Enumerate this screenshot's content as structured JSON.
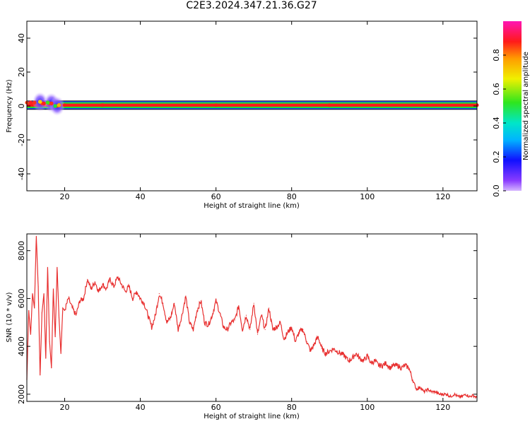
{
  "title": "C2E3.2024.347.21.36.G27",
  "chart_data": [
    {
      "type": "heatmap",
      "xlabel": "Height of straight line (km)",
      "ylabel": "Frequency (Hz)",
      "xlim": [
        10,
        129
      ],
      "ylim": [
        -50,
        50
      ],
      "xticks": [
        20,
        40,
        60,
        80,
        100,
        120
      ],
      "yticks": [
        -40,
        -20,
        0,
        20,
        40
      ],
      "colorbar": {
        "label": "Normalized spectral amplitude",
        "range": [
          0.0,
          1.0
        ],
        "ticks": [
          0.0,
          0.2,
          0.4,
          0.6,
          0.8
        ],
        "colormap": "rainbow (violet-blue-cyan-green-yellow-red-magenta)"
      },
      "ridge": {
        "x": [
          10,
          12,
          14,
          16,
          18,
          20,
          30,
          60,
          90,
          129
        ],
        "frequency": [
          2,
          2,
          1.5,
          1.5,
          0,
          0.5,
          0.5,
          0.5,
          0.5,
          0.5
        ],
        "amplitude": [
          1,
          1,
          1,
          1,
          1,
          1,
          1,
          1,
          1,
          1
        ]
      },
      "blobs": [
        {
          "x": 13.5,
          "frequency": 2.5,
          "level": 0.1
        },
        {
          "x": 16.5,
          "frequency": 2,
          "level": 0.2
        },
        {
          "x": 18,
          "frequency": 0,
          "level": 0.2
        }
      ]
    },
    {
      "type": "line",
      "xlabel": "Height of straight line (km)",
      "ylabel": "SNR (10 * v/v)",
      "xlim": [
        10,
        129
      ],
      "ylim": [
        1700,
        8700
      ],
      "xticks": [
        20,
        40,
        60,
        80,
        100,
        120
      ],
      "yticks": [
        2000,
        4000,
        6000,
        8000
      ],
      "color": "#e83030",
      "series": [
        {
          "x": [
            10,
            10.5,
            11,
            11.5,
            12,
            12.5,
            13,
            13.5,
            14,
            14.5,
            15,
            15.5,
            16,
            16.5,
            17,
            17.5,
            18,
            18.5,
            19,
            19.5,
            20,
            21,
            22,
            23,
            24,
            25,
            26,
            27,
            28,
            29,
            30,
            31,
            32,
            33,
            34,
            35,
            36,
            37,
            38,
            39,
            40,
            41,
            42,
            43,
            44,
            45,
            46,
            47,
            48,
            49,
            50,
            51,
            52,
            53,
            54,
            55,
            56,
            57,
            58,
            59,
            60,
            61,
            62,
            63,
            64,
            65,
            66,
            67,
            68,
            69,
            70,
            71,
            72,
            73,
            74,
            75,
            76,
            77,
            78,
            79,
            80,
            81,
            82,
            83,
            84,
            85,
            86,
            87,
            88,
            89,
            90,
            91,
            92,
            93,
            94,
            95,
            96,
            97,
            98,
            99,
            100,
            101,
            102,
            103,
            104,
            105,
            106,
            107,
            108,
            109,
            110,
            111,
            112,
            113,
            114,
            115,
            116,
            117,
            118,
            119,
            120,
            121,
            122,
            123,
            124,
            125,
            126,
            127,
            128,
            129
          ],
          "values": [
            2600,
            5500,
            4500,
            6200,
            5600,
            8600,
            6500,
            2800,
            5400,
            6200,
            3500,
            7300,
            4200,
            3100,
            6400,
            4400,
            7300,
            5200,
            3700,
            5600,
            5500,
            6000,
            5600,
            5300,
            5900,
            6000,
            6800,
            6400,
            6700,
            6300,
            6600,
            6400,
            6800,
            6500,
            6900,
            6600,
            6300,
            6500,
            6000,
            6300,
            6000,
            5800,
            5300,
            4800,
            5300,
            6200,
            5800,
            5000,
            5200,
            5800,
            4700,
            5300,
            6100,
            5000,
            4700,
            5500,
            5900,
            5000,
            4900,
            5300,
            5900,
            5400,
            4800,
            4700,
            5000,
            5100,
            5700,
            4700,
            5300,
            4700,
            5800,
            4500,
            5300,
            4700,
            5600,
            4700,
            4800,
            5000,
            4300,
            4600,
            4800,
            4200,
            4600,
            4700,
            4200,
            3800,
            4100,
            4400,
            3900,
            3700,
            3800,
            3900,
            3800,
            3700,
            3600,
            3400,
            3500,
            3700,
            3500,
            3400,
            3600,
            3300,
            3400,
            3200,
            3200,
            3300,
            3100,
            3200,
            3200,
            3100,
            3200,
            3100,
            2600,
            2200,
            2300,
            2100,
            2200,
            2100,
            2100,
            2000,
            2000,
            2000,
            1900,
            2000,
            1900,
            1900,
            2000,
            1900,
            1950,
            1850
          ]
        }
      ]
    }
  ]
}
